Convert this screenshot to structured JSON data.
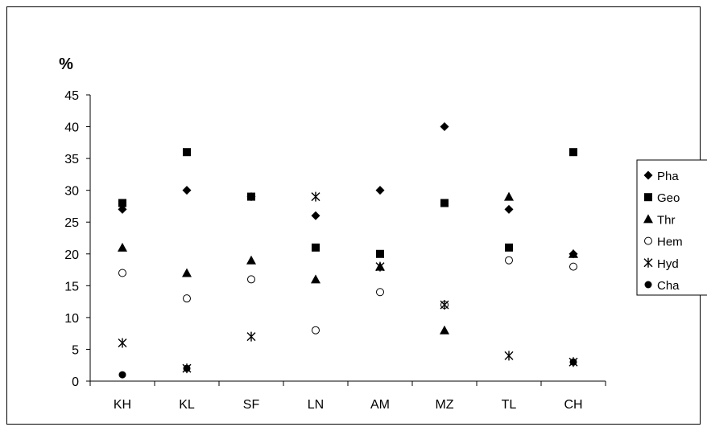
{
  "chart_data": {
    "type": "scatter",
    "ylabel": "%",
    "ylim": [
      0,
      45
    ],
    "yticks": [
      0,
      5,
      10,
      15,
      20,
      25,
      30,
      35,
      40,
      45
    ],
    "categories": [
      "KH",
      "KL",
      "SF",
      "LN",
      "AM",
      "MZ",
      "TL",
      "CH"
    ],
    "grid": false,
    "legend_position": "right",
    "series": [
      {
        "name": "Pha",
        "marker": "diamond",
        "values": [
          27,
          30,
          29,
          26,
          30,
          40,
          27,
          20
        ]
      },
      {
        "name": "Geo",
        "marker": "square",
        "values": [
          28,
          36,
          29,
          21,
          20,
          28,
          21,
          36
        ]
      },
      {
        "name": "Thr",
        "marker": "triangle",
        "values": [
          21,
          17,
          19,
          16,
          18,
          8,
          29,
          20
        ]
      },
      {
        "name": "Hem",
        "marker": "open-circle",
        "values": [
          17,
          13,
          16,
          8,
          14,
          12,
          19,
          18
        ]
      },
      {
        "name": "Hyd",
        "marker": "asterisk",
        "values": [
          6,
          2,
          7,
          29,
          18,
          12,
          4,
          3
        ]
      },
      {
        "name": "Cha",
        "marker": "filled-circle",
        "values": [
          1,
          2,
          null,
          null,
          null,
          null,
          null,
          3
        ]
      }
    ]
  }
}
